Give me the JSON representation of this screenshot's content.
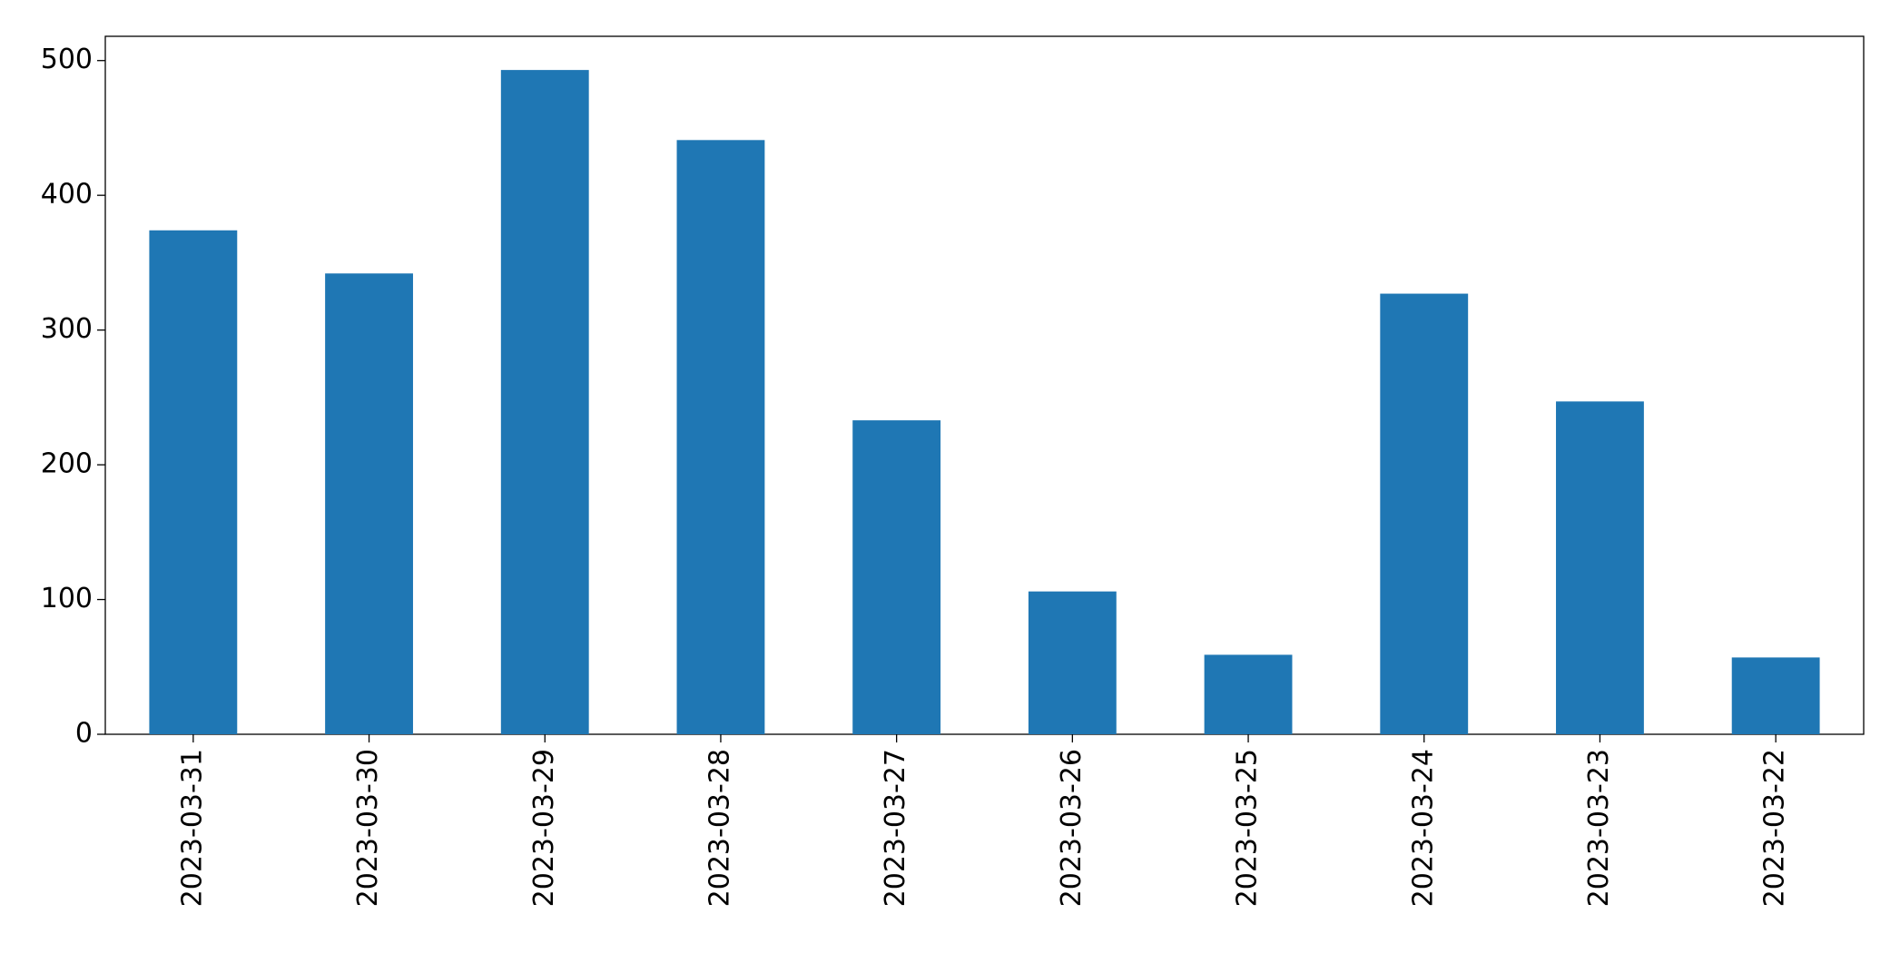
{
  "chart_data": {
    "type": "bar",
    "categories": [
      "2023-03-31",
      "2023-03-30",
      "2023-03-29",
      "2023-03-28",
      "2023-03-27",
      "2023-03-26",
      "2023-03-25",
      "2023-03-24",
      "2023-03-23",
      "2023-03-22"
    ],
    "values": [
      374,
      342,
      493,
      441,
      233,
      106,
      59,
      327,
      247,
      57
    ],
    "color": "#1f77b4",
    "ylim": [
      0,
      518
    ],
    "yticks": [
      0,
      100,
      200,
      300,
      400,
      500
    ],
    "grid": false
  }
}
